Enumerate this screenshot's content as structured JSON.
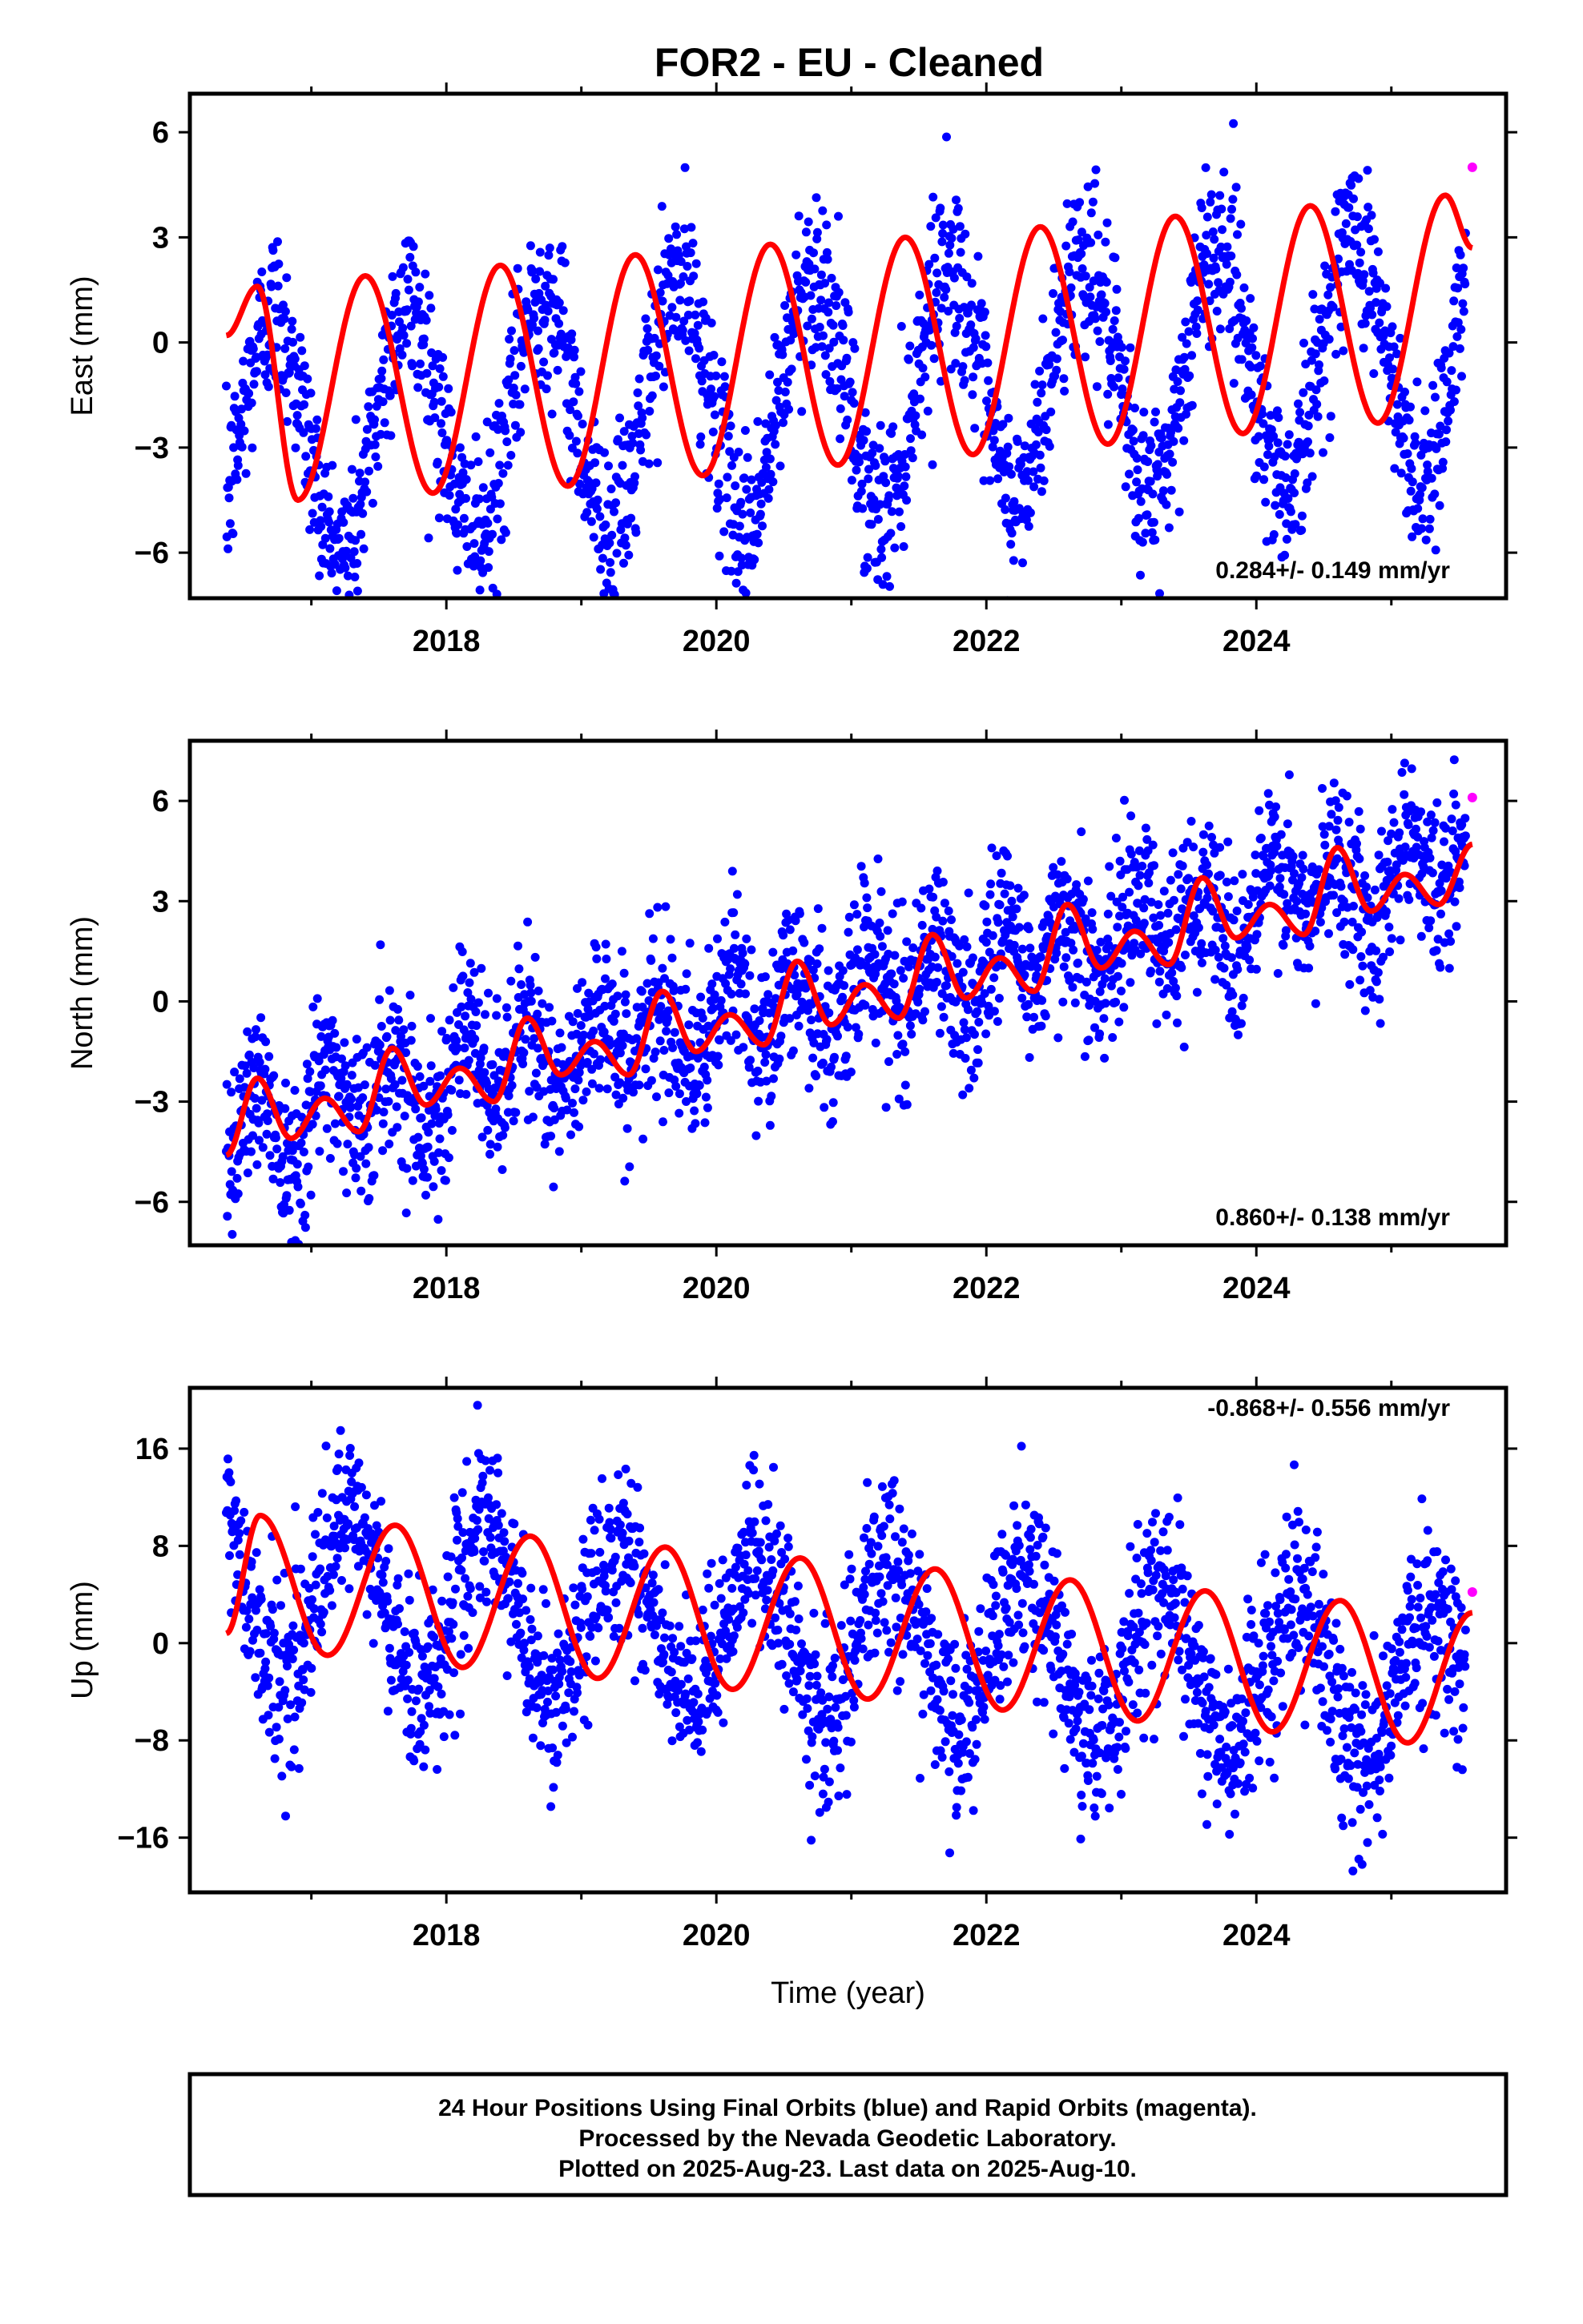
{
  "title": "FOR2  - EU - Cleaned",
  "colors": {
    "final_orbits": "#0000ff",
    "rapid_orbits": "#ff00ff",
    "model": "#ff0000",
    "frame": "#000000"
  },
  "footer": {
    "line1": "24 Hour Positions Using Final Orbits (blue) and Rapid Orbits (magenta).",
    "line2": "Processed by the Nevada Geodetic Laboratory.",
    "line3": "Plotted on 2025-Aug-23. Last data on 2025-Aug-10."
  },
  "chart_data": [
    {
      "type": "scatter",
      "ylabel": "East (mm)",
      "xlabel": "",
      "x_ticks": [
        "2018",
        "2020",
        "2022",
        "2024"
      ],
      "y_ticks": [
        "6",
        "3",
        "0",
        "−3",
        "−6"
      ],
      "xlim": [
        2016.1,
        2025.85
      ],
      "ylim": [
        -7.3,
        7.1
      ],
      "rate_label": "0.284+/- 0.149 mm/yr",
      "grid": false,
      "series": [
        {
          "role": "final_orbits",
          "x_range": [
            2016.37,
            2025.55
          ],
          "model": "offset_trend_seasonal"
        },
        {
          "role": "rapid_orbits",
          "points": [
            [
              2025.6,
              5.0
            ]
          ]
        },
        {
          "role": "model",
          "x": [
            2016.37,
            2016.6,
            2016.9,
            2017.4,
            2017.9,
            2018.4,
            2018.9,
            2019.4,
            2019.9,
            2020.4,
            2020.9,
            2021.4,
            2021.9,
            2022.4,
            2022.9,
            2023.4,
            2023.9,
            2024.4,
            2024.9,
            2025.4,
            2025.6
          ],
          "y": [
            0.2,
            1.6,
            -4.5,
            1.9,
            -4.3,
            2.2,
            -4.1,
            2.5,
            -3.8,
            2.8,
            -3.5,
            3.0,
            -3.2,
            3.3,
            -2.9,
            3.6,
            -2.6,
            3.9,
            -2.3,
            4.2,
            2.7
          ]
        }
      ]
    },
    {
      "type": "scatter",
      "ylabel": "North (mm)",
      "xlabel": "",
      "x_ticks": [
        "2018",
        "2020",
        "2022",
        "2024"
      ],
      "y_ticks": [
        "6",
        "3",
        "0",
        "−3",
        "−6"
      ],
      "xlim": [
        2016.1,
        2025.85
      ],
      "ylim": [
        -7.3,
        7.8
      ],
      "rate_label": "0.860+/- 0.138 mm/yr",
      "grid": false,
      "series": [
        {
          "role": "final_orbits",
          "x_range": [
            2016.37,
            2025.55
          ],
          "model": "offset_trend_seasonal"
        },
        {
          "role": "rapid_orbits",
          "points": [
            [
              2025.6,
              6.1
            ]
          ]
        },
        {
          "role": "model",
          "x": [
            2016.37,
            2016.6,
            2016.85,
            2017.1,
            2017.35,
            2017.6,
            2017.85,
            2018.1,
            2018.35,
            2018.6,
            2018.85,
            2019.1,
            2019.35,
            2019.6,
            2019.85,
            2020.1,
            2020.35,
            2020.6,
            2020.85,
            2021.1,
            2021.35,
            2021.6,
            2021.85,
            2022.1,
            2022.35,
            2022.6,
            2022.85,
            2023.1,
            2023.35,
            2023.6,
            2023.85,
            2024.1,
            2024.35,
            2024.6,
            2024.85,
            2025.1,
            2025.35,
            2025.6
          ],
          "y": [
            -4.6,
            -2.3,
            -4.1,
            -2.9,
            -3.9,
            -1.4,
            -3.1,
            -2.0,
            -3.0,
            -0.5,
            -2.2,
            -1.2,
            -2.2,
            0.3,
            -1.5,
            -0.4,
            -1.3,
            1.2,
            -0.7,
            0.5,
            -0.5,
            2.0,
            0.1,
            1.3,
            0.3,
            2.9,
            1.0,
            2.1,
            1.1,
            3.7,
            1.9,
            2.9,
            2.0,
            4.6,
            2.7,
            3.8,
            2.9,
            4.7
          ]
        }
      ]
    },
    {
      "type": "scatter",
      "ylabel": "Up (mm)",
      "xlabel": "Time (year)",
      "x_ticks": [
        "2018",
        "2020",
        "2022",
        "2024"
      ],
      "y_ticks": [
        "16",
        "8",
        "0",
        "−8",
        "−16"
      ],
      "xlim": [
        2016.1,
        2025.85
      ],
      "ylim": [
        -20.5,
        21.0
      ],
      "rate_label": "-0.868+/- 0.556 mm/yr",
      "grid": false,
      "series": [
        {
          "role": "final_orbits",
          "x_range": [
            2016.37,
            2025.55
          ],
          "model": "offset_trend_seasonal"
        },
        {
          "role": "rapid_orbits",
          "points": [
            [
              2025.6,
              4.2
            ]
          ]
        },
        {
          "role": "model",
          "x": [
            2016.37,
            2016.62,
            2017.12,
            2017.62,
            2018.12,
            2018.62,
            2019.12,
            2019.62,
            2020.12,
            2020.62,
            2021.12,
            2021.62,
            2022.12,
            2022.62,
            2023.12,
            2023.62,
            2024.12,
            2024.62,
            2025.12,
            2025.6
          ],
          "y": [
            0.8,
            10.5,
            -1.0,
            9.7,
            -2.0,
            8.8,
            -2.9,
            7.9,
            -3.8,
            7.0,
            -4.6,
            6.1,
            -5.5,
            5.2,
            -6.4,
            4.3,
            -7.3,
            3.5,
            -8.2,
            2.5
          ]
        }
      ]
    }
  ]
}
